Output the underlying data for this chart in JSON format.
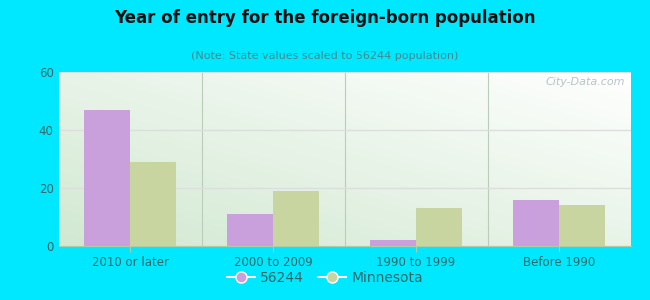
{
  "title": "Year of entry for the foreign-born population",
  "subtitle": "(Note: State values scaled to 56244 population)",
  "categories": [
    "2010 or later",
    "2000 to 2009",
    "1990 to 1999",
    "Before 1990"
  ],
  "values_56244": [
    47,
    11,
    2,
    16
  ],
  "values_minnesota": [
    29,
    19,
    13,
    14
  ],
  "bar_color_56244": "#c9a0dc",
  "bar_color_minnesota": "#c8d5a0",
  "background_outer": "#00e8ff",
  "ylim": [
    0,
    60
  ],
  "yticks": [
    0,
    20,
    40,
    60
  ],
  "bar_width": 0.32,
  "legend_label_56244": "56244",
  "legend_label_minnesota": "Minnesota",
  "watermark": "City-Data.com",
  "title_color": "#111111",
  "subtitle_color": "#448888",
  "tick_color": "#336666",
  "grid_color": "#dddddd"
}
